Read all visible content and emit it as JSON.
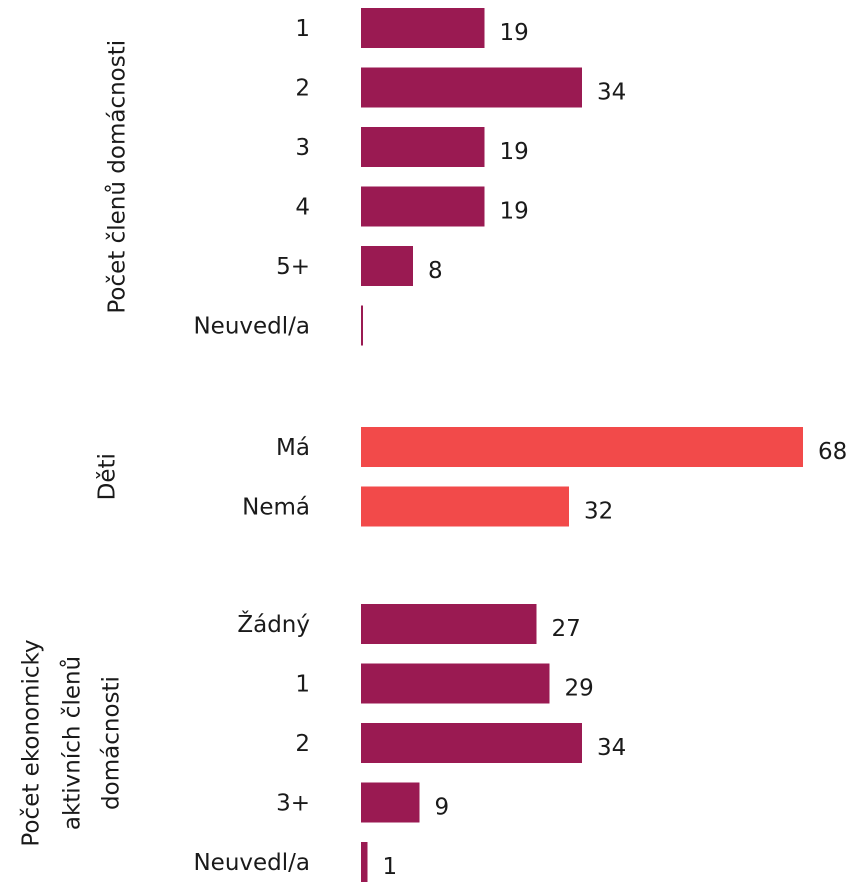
{
  "colors": {
    "primary": "#9a1a52",
    "accent": "#f24a4a",
    "text": "#1a1a1a"
  },
  "chart_data": {
    "type": "bar",
    "orientation": "horizontal",
    "grid": false,
    "xlim": [
      0,
      68
    ],
    "groups": [
      {
        "label": "Počet členů domácnosti",
        "color": "primary",
        "categories": [
          "1",
          "2",
          "3",
          "4",
          "5+",
          "Neuvedl/a"
        ],
        "values": [
          19,
          34,
          19,
          19,
          8,
          0
        ],
        "value_labels": [
          "19",
          "34",
          "19",
          "19",
          "8",
          ""
        ]
      },
      {
        "label": "Děti",
        "color": "accent",
        "categories": [
          "Má",
          "Nemá"
        ],
        "values": [
          68,
          32
        ],
        "value_labels": [
          "68",
          "32"
        ]
      },
      {
        "label": "Počet ekonomicky aktivních členů domácnosti",
        "label_lines": [
          "Počet ekonomicky",
          "aktivních členů",
          "domácnosti"
        ],
        "color": "primary",
        "categories": [
          "Žádný",
          "1",
          "2",
          "3+",
          "Neuvedl/a"
        ],
        "values": [
          27,
          29,
          34,
          9,
          1
        ],
        "value_labels": [
          "27",
          "29",
          "34",
          "9",
          "1"
        ]
      }
    ]
  }
}
